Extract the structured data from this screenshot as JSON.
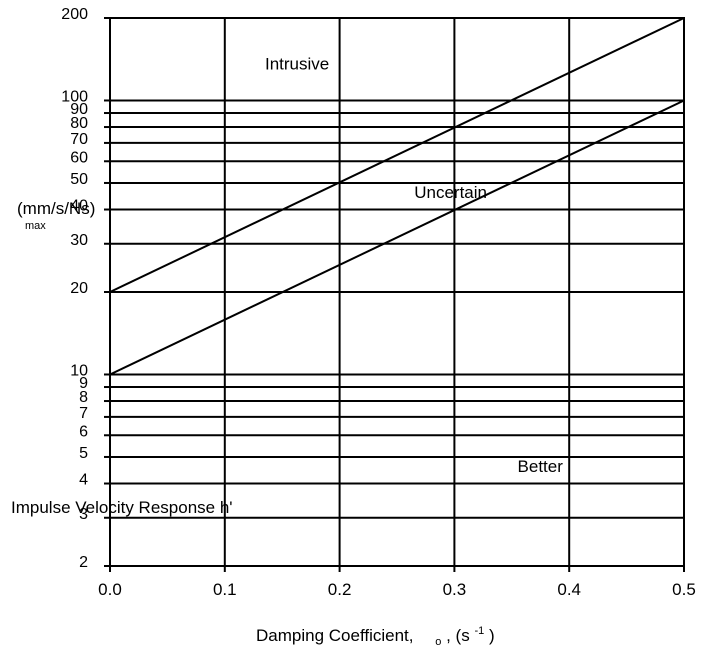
{
  "chart_data": {
    "type": "line",
    "x_scale": "linear",
    "y_scale": "log",
    "xlim": [
      0.0,
      0.5
    ],
    "ylim": [
      2,
      200
    ],
    "x_ticks": [
      0.0,
      0.1,
      0.2,
      0.3,
      0.4,
      0.5
    ],
    "x_tick_labels": [
      "0.0",
      "0.1",
      "0.2",
      "0.3",
      "0.4",
      "0.5"
    ],
    "y_ticks": [
      2,
      3,
      4,
      5,
      6,
      7,
      8,
      9,
      10,
      20,
      30,
      40,
      50,
      60,
      70,
      80,
      90,
      100,
      200
    ],
    "y_tick_labels": [
      "2",
      "3",
      "4",
      "5",
      "6",
      "7",
      "8",
      "9",
      "10",
      "20",
      "30",
      "40",
      "50",
      "60",
      "70",
      "80",
      "90",
      "100",
      "200"
    ],
    "grid": {
      "vertical": true,
      "horizontal": true
    },
    "xlabel": "Damping Coefficient,",
    "xlabel_suffix": "o",
    "xlabel_units_open": ", (s",
    "xlabel_units_exp": "-1",
    "xlabel_units_close": ")",
    "ylabel_line1": "Impulse Velocity Response h'",
    "ylabel_line2": "(mm/s/Ns)",
    "ylabel_sub": "max",
    "series": [
      {
        "x": [
          0.0,
          0.5
        ],
        "y": [
          20,
          200
        ]
      },
      {
        "x": [
          0.0,
          0.5
        ],
        "y": [
          10,
          100
        ]
      }
    ],
    "annotations": [
      {
        "text": "Intrusive",
        "x": 0.135,
        "y": 130
      },
      {
        "text": "Uncertain",
        "x": 0.265,
        "y": 44
      },
      {
        "text": "Better",
        "x": 0.355,
        "y": 4.4
      }
    ]
  }
}
